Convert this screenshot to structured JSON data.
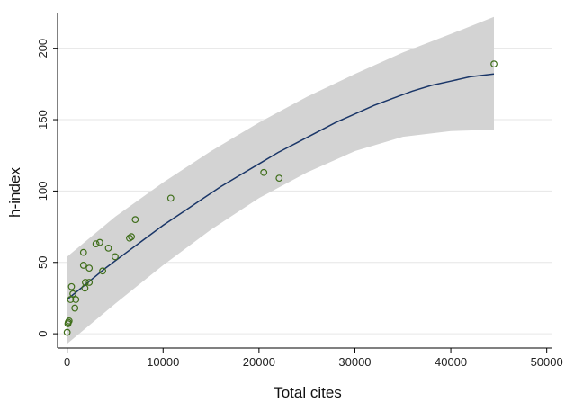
{
  "chart_data": {
    "type": "scatter",
    "xlabel": "Total cites",
    "ylabel": "h-index",
    "xlim": [
      -1000,
      50500
    ],
    "ylim": [
      -10,
      225
    ],
    "xticks": [
      0,
      10000,
      20000,
      30000,
      40000,
      50000
    ],
    "yticks": [
      0,
      50,
      100,
      150,
      200
    ],
    "grid": "horizontal",
    "points": [
      {
        "x": 0,
        "y": 1
      },
      {
        "x": 80,
        "y": 7
      },
      {
        "x": 120,
        "y": 8
      },
      {
        "x": 200,
        "y": 9
      },
      {
        "x": 350,
        "y": 24
      },
      {
        "x": 450,
        "y": 33
      },
      {
        "x": 600,
        "y": 28
      },
      {
        "x": 800,
        "y": 18
      },
      {
        "x": 900,
        "y": 24
      },
      {
        "x": 1700,
        "y": 57
      },
      {
        "x": 1700,
        "y": 48
      },
      {
        "x": 1850,
        "y": 32
      },
      {
        "x": 1900,
        "y": 36
      },
      {
        "x": 2300,
        "y": 46
      },
      {
        "x": 2300,
        "y": 36
      },
      {
        "x": 3000,
        "y": 63
      },
      {
        "x": 3400,
        "y": 64
      },
      {
        "x": 3700,
        "y": 44
      },
      {
        "x": 4300,
        "y": 60
      },
      {
        "x": 5000,
        "y": 54
      },
      {
        "x": 6500,
        "y": 67
      },
      {
        "x": 6700,
        "y": 68
      },
      {
        "x": 7100,
        "y": 80
      },
      {
        "x": 10800,
        "y": 95
      },
      {
        "x": 20500,
        "y": 113
      },
      {
        "x": 22100,
        "y": 109
      },
      {
        "x": 44500,
        "y": 189
      }
    ],
    "fit_line": {
      "x": [
        0,
        2000,
        4000,
        6000,
        8000,
        10000,
        12000,
        14000,
        16000,
        18000,
        20000,
        22000,
        24000,
        26000,
        28000,
        30000,
        32000,
        34000,
        36000,
        38000,
        40000,
        42000,
        44500
      ],
      "y": [
        24,
        35,
        46,
        56,
        66,
        76,
        85,
        94,
        103,
        111,
        119,
        127,
        134,
        141,
        148,
        154,
        160,
        165,
        170,
        174,
        177,
        180,
        182
      ]
    },
    "ci_band": {
      "x": [
        0,
        5000,
        10000,
        15000,
        20000,
        25000,
        30000,
        35000,
        40000,
        44500
      ],
      "lower": [
        -7,
        21,
        48,
        73,
        95,
        113,
        128,
        138,
        142,
        143
      ],
      "upper": [
        54,
        82,
        106,
        128,
        148,
        166,
        182,
        197,
        210,
        222
      ]
    },
    "colors": {
      "band": "#d3d3d3",
      "line": "#1a3668",
      "marker": "#3f6e1a",
      "grid": "#e6e6e6",
      "axis": "#000000"
    }
  }
}
